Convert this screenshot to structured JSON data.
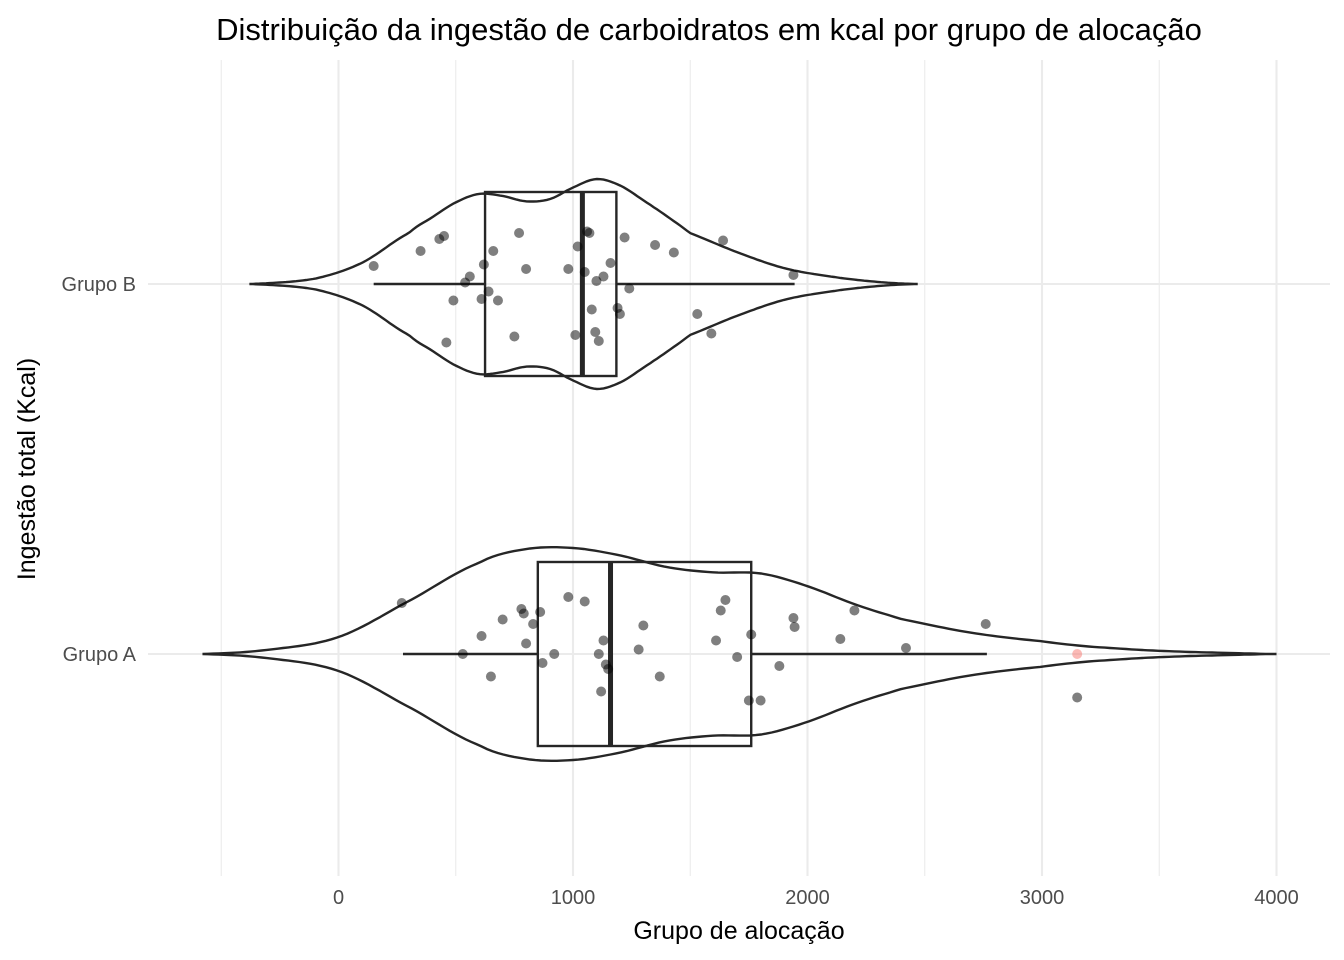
{
  "chart_data": {
    "type": "violin",
    "title": "Distribuição da ingestão de carboidratos em kcal por grupo de alocação",
    "xlabel": "Grupo de alocação",
    "ylabel": "Ingestão total (Kcal)",
    "xlim": [
      -700,
      4150
    ],
    "x_ticks": [
      0,
      1000,
      2000,
      3000,
      4000
    ],
    "x_tick_labels": [
      "0",
      "1000",
      "2000",
      "3000",
      "4000"
    ],
    "x_minor_ticks": [
      -500,
      500,
      1500,
      2500,
      3500
    ],
    "categories": [
      "Grupo A",
      "Grupo B"
    ],
    "grid": true,
    "outlier_color": "#f8766d",
    "groups": [
      {
        "name": "Grupo A",
        "violin_range": [
          -580,
          4000
        ],
        "violin_density": [
          [
            -580,
            0.0
          ],
          [
            -300,
            0.04
          ],
          [
            0,
            0.16
          ],
          [
            300,
            0.5
          ],
          [
            600,
            0.86
          ],
          [
            800,
            0.99
          ],
          [
            1000,
            1.0
          ],
          [
            1200,
            0.93
          ],
          [
            1400,
            0.82
          ],
          [
            1600,
            0.77
          ],
          [
            1800,
            0.76
          ],
          [
            2000,
            0.64
          ],
          [
            2200,
            0.47
          ],
          [
            2400,
            0.33
          ],
          [
            2700,
            0.2
          ],
          [
            3000,
            0.12
          ],
          [
            3200,
            0.07
          ],
          [
            3500,
            0.03
          ],
          [
            3800,
            0.01
          ],
          [
            4000,
            0.0
          ]
        ],
        "box": {
          "q1": 850,
          "median": 1160,
          "q3": 1760,
          "whisker_low": 275,
          "whisker_high": 2765
        },
        "outliers": [
          3150
        ],
        "points": [
          {
            "x": 270,
            "j": 0.34
          },
          {
            "x": 530,
            "j": 0.0
          },
          {
            "x": 610,
            "j": 0.12
          },
          {
            "x": 650,
            "j": -0.15
          },
          {
            "x": 700,
            "j": 0.23
          },
          {
            "x": 780,
            "j": 0.3
          },
          {
            "x": 790,
            "j": 0.27
          },
          {
            "x": 800,
            "j": 0.07
          },
          {
            "x": 830,
            "j": 0.2
          },
          {
            "x": 860,
            "j": 0.28
          },
          {
            "x": 870,
            "j": -0.06
          },
          {
            "x": 920,
            "j": 0.0
          },
          {
            "x": 980,
            "j": 0.38
          },
          {
            "x": 1050,
            "j": 0.35
          },
          {
            "x": 1110,
            "j": 0.0
          },
          {
            "x": 1120,
            "j": -0.25
          },
          {
            "x": 1130,
            "j": 0.09
          },
          {
            "x": 1140,
            "j": -0.07
          },
          {
            "x": 1150,
            "j": -0.1
          },
          {
            "x": 1280,
            "j": 0.03
          },
          {
            "x": 1300,
            "j": 0.19
          },
          {
            "x": 1370,
            "j": -0.15
          },
          {
            "x": 1610,
            "j": 0.09
          },
          {
            "x": 1630,
            "j": 0.29
          },
          {
            "x": 1650,
            "j": 0.36
          },
          {
            "x": 1700,
            "j": -0.02
          },
          {
            "x": 1750,
            "j": -0.31
          },
          {
            "x": 1760,
            "j": 0.13
          },
          {
            "x": 1800,
            "j": -0.31
          },
          {
            "x": 1880,
            "j": -0.08
          },
          {
            "x": 1940,
            "j": 0.24
          },
          {
            "x": 1945,
            "j": 0.18
          },
          {
            "x": 2140,
            "j": 0.1
          },
          {
            "x": 2200,
            "j": 0.29
          },
          {
            "x": 2420,
            "j": 0.04
          },
          {
            "x": 2760,
            "j": 0.2
          },
          {
            "x": 3150,
            "j": -0.29
          }
        ]
      },
      {
        "name": "Grupo B",
        "violin_range": [
          -380,
          2470
        ],
        "violin_density": [
          [
            -380,
            0.0
          ],
          [
            -100,
            0.05
          ],
          [
            100,
            0.2
          ],
          [
            300,
            0.48
          ],
          [
            400,
            0.63
          ],
          [
            500,
            0.77
          ],
          [
            600,
            0.85
          ],
          [
            700,
            0.83
          ],
          [
            800,
            0.78
          ],
          [
            900,
            0.8
          ],
          [
            1000,
            0.91
          ],
          [
            1100,
            0.99
          ],
          [
            1200,
            0.93
          ],
          [
            1300,
            0.79
          ],
          [
            1400,
            0.64
          ],
          [
            1500,
            0.48
          ],
          [
            1700,
            0.3
          ],
          [
            1900,
            0.15
          ],
          [
            2100,
            0.07
          ],
          [
            2300,
            0.02
          ],
          [
            2470,
            0.0
          ]
        ],
        "box": {
          "q1": 625,
          "median": 1040,
          "q3": 1185,
          "whisker_low": 150,
          "whisker_high": 1945
        },
        "outliers": [],
        "points": [
          {
            "x": 150,
            "j": 0.12
          },
          {
            "x": 350,
            "j": 0.22
          },
          {
            "x": 430,
            "j": 0.3
          },
          {
            "x": 450,
            "j": 0.32
          },
          {
            "x": 460,
            "j": -0.39
          },
          {
            "x": 490,
            "j": -0.11
          },
          {
            "x": 540,
            "j": 0.01
          },
          {
            "x": 560,
            "j": 0.05
          },
          {
            "x": 610,
            "j": -0.1
          },
          {
            "x": 620,
            "j": 0.13
          },
          {
            "x": 640,
            "j": -0.05
          },
          {
            "x": 660,
            "j": 0.22
          },
          {
            "x": 680,
            "j": -0.11
          },
          {
            "x": 750,
            "j": -0.35
          },
          {
            "x": 770,
            "j": 0.34
          },
          {
            "x": 800,
            "j": 0.1
          },
          {
            "x": 980,
            "j": 0.1
          },
          {
            "x": 1010,
            "j": -0.34
          },
          {
            "x": 1020,
            "j": 0.25
          },
          {
            "x": 1050,
            "j": 0.08
          },
          {
            "x": 1060,
            "j": 0.35
          },
          {
            "x": 1070,
            "j": 0.34
          },
          {
            "x": 1080,
            "j": -0.17
          },
          {
            "x": 1095,
            "j": -0.32
          },
          {
            "x": 1100,
            "j": 0.02
          },
          {
            "x": 1110,
            "j": -0.38
          },
          {
            "x": 1130,
            "j": 0.05
          },
          {
            "x": 1160,
            "j": 0.14
          },
          {
            "x": 1190,
            "j": -0.16
          },
          {
            "x": 1200,
            "j": -0.2
          },
          {
            "x": 1220,
            "j": 0.31
          },
          {
            "x": 1240,
            "j": -0.03
          },
          {
            "x": 1350,
            "j": 0.26
          },
          {
            "x": 1430,
            "j": 0.21
          },
          {
            "x": 1530,
            "j": -0.2
          },
          {
            "x": 1590,
            "j": -0.33
          },
          {
            "x": 1640,
            "j": 0.29
          },
          {
            "x": 1940,
            "j": 0.06
          }
        ]
      }
    ]
  }
}
